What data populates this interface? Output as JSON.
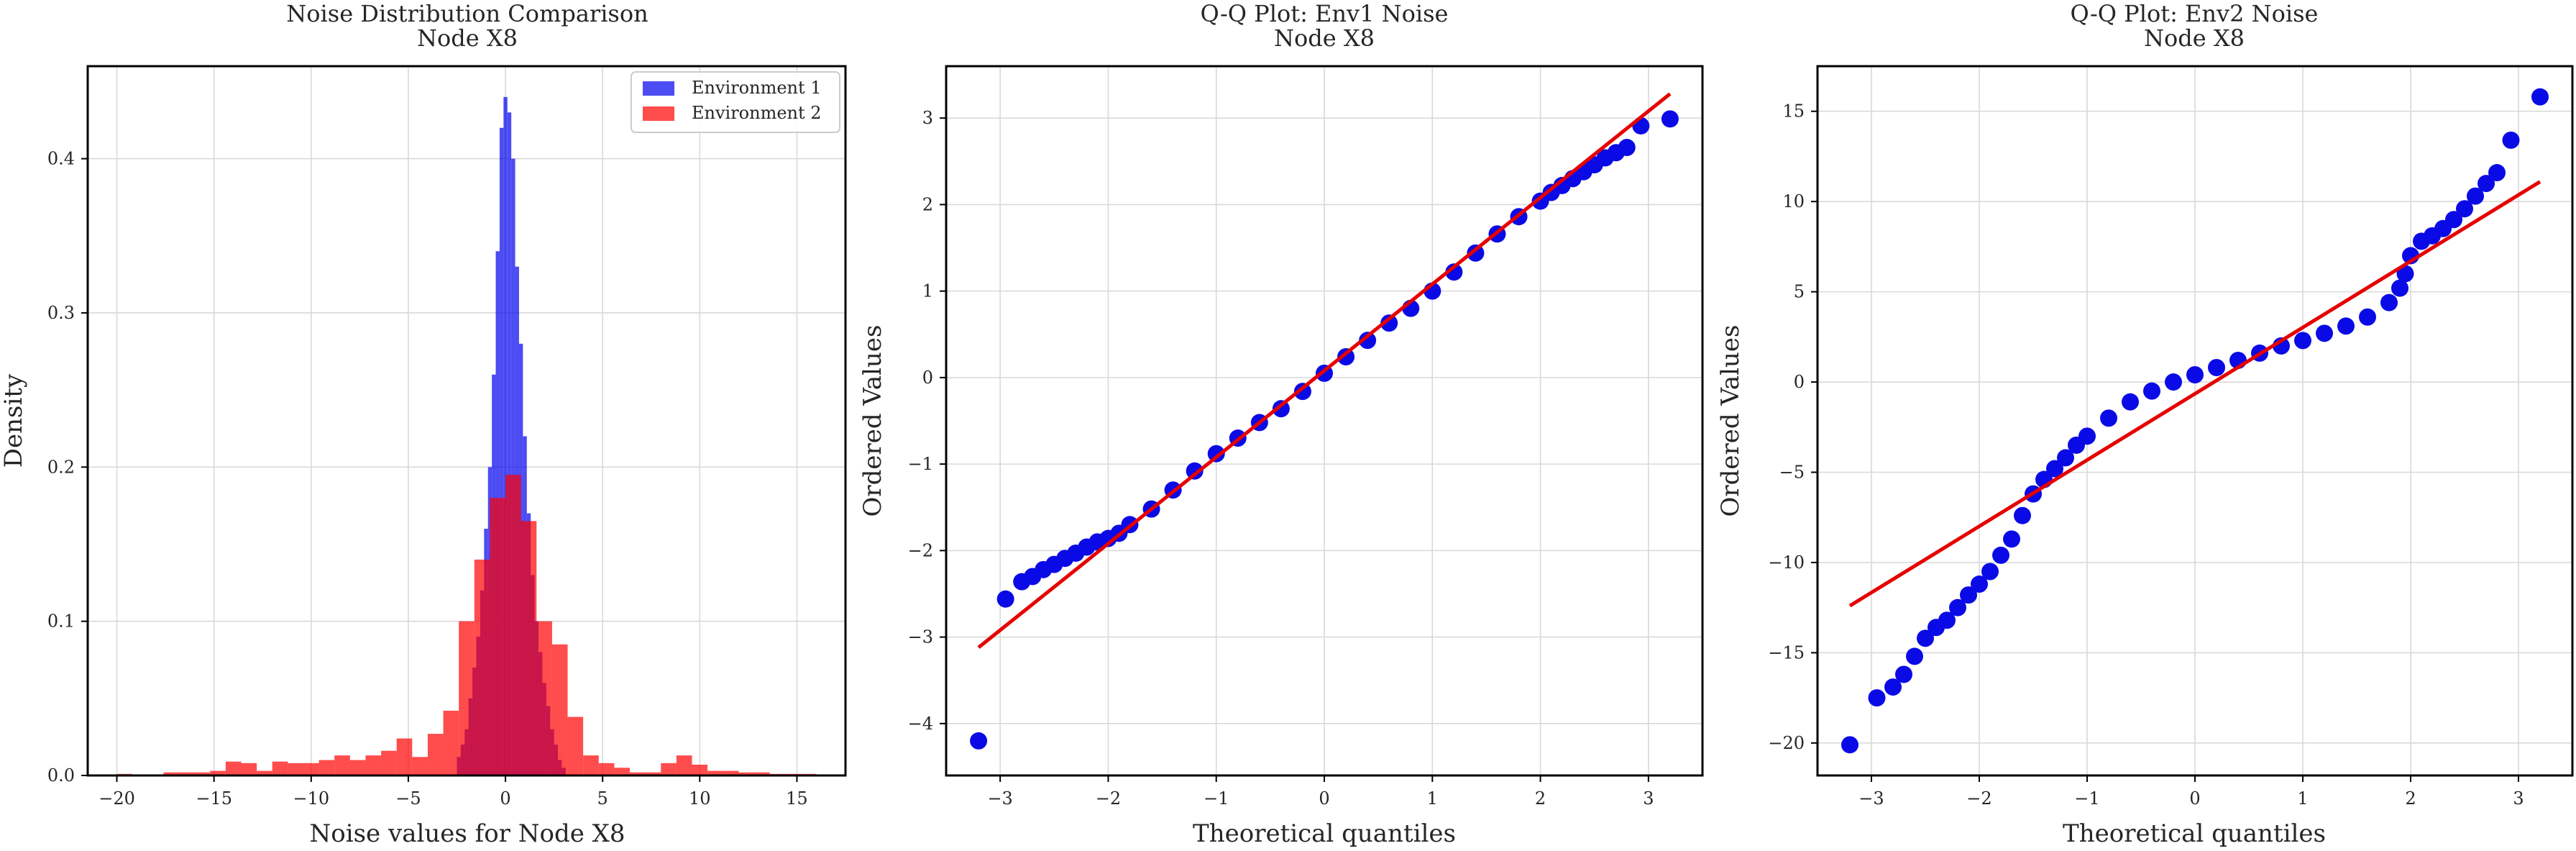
{
  "colors": {
    "env1": "#0000ee",
    "env2": "#ff0000",
    "qq_points": "#0a0ae6",
    "qq_line": "#e60000",
    "grid": "#d9d9d9"
  },
  "chart_data": [
    {
      "type": "histogram",
      "title": "Noise Distribution Comparison",
      "subtitle": "Node X8",
      "xlabel": "Noise values for Node X8",
      "ylabel": "Density",
      "xlim": [
        -21.5,
        17.5
      ],
      "ylim": [
        0,
        0.46
      ],
      "xticks": [
        -20,
        -15,
        -10,
        -5,
        0,
        5,
        10,
        15
      ],
      "yticks": [
        0.0,
        0.1,
        0.2,
        0.3,
        0.4
      ],
      "xtick_labels": [
        "−20",
        "−15",
        "−10",
        "−5",
        "0",
        "5",
        "10",
        "15"
      ],
      "ytick_labels": [
        "0.0",
        "0.1",
        "0.2",
        "0.3",
        "0.4"
      ],
      "grid": true,
      "legend": {
        "position": "top-right",
        "entries": [
          "Environment 1",
          "Environment 2"
        ]
      },
      "series": [
        {
          "name": "Environment 1",
          "bin_edges": [
            -2.5,
            -2.3,
            -2.1,
            -1.9,
            -1.7,
            -1.5,
            -1.3,
            -1.1,
            -0.9,
            -0.7,
            -0.5,
            -0.3,
            -0.1,
            0.1,
            0.3,
            0.5,
            0.7,
            0.9,
            1.1,
            1.3,
            1.5,
            1.7,
            1.9,
            2.1,
            2.3,
            2.5,
            2.7,
            2.9,
            3.1
          ],
          "density": [
            0.012,
            0.02,
            0.03,
            0.05,
            0.07,
            0.09,
            0.12,
            0.16,
            0.2,
            0.26,
            0.34,
            0.42,
            0.44,
            0.43,
            0.4,
            0.33,
            0.28,
            0.22,
            0.17,
            0.13,
            0.1,
            0.08,
            0.06,
            0.045,
            0.03,
            0.02,
            0.01,
            0.005
          ]
        },
        {
          "name": "Environment 2",
          "bin_edges": [
            -20,
            -19.2,
            -18.4,
            -17.6,
            -16.8,
            -16,
            -15.2,
            -14.4,
            -13.6,
            -12.8,
            -12,
            -11.2,
            -10.4,
            -9.6,
            -8.8,
            -8,
            -7.2,
            -6.4,
            -5.6,
            -4.8,
            -4,
            -3.2,
            -2.4,
            -1.6,
            -0.8,
            0,
            0.8,
            1.6,
            2.4,
            3.2,
            4,
            4.8,
            5.6,
            6.4,
            7.2,
            8,
            8.8,
            9.6,
            10.4,
            11.2,
            12,
            12.8,
            13.6,
            14.4,
            15.2,
            16
          ],
          "density": [
            0.001,
            0,
            0,
            0.002,
            0.002,
            0.002,
            0.003,
            0.009,
            0.008,
            0.003,
            0.009,
            0.008,
            0.008,
            0.01,
            0.013,
            0.01,
            0.013,
            0.016,
            0.024,
            0.012,
            0.027,
            0.042,
            0.1,
            0.14,
            0.18,
            0.195,
            0.165,
            0.1,
            0.085,
            0.038,
            0.013,
            0.008,
            0.005,
            0.002,
            0.002,
            0.008,
            0.013,
            0.007,
            0.003,
            0.003,
            0.002,
            0.002,
            0.001,
            0.001,
            0.001
          ]
        }
      ]
    },
    {
      "type": "scatter",
      "title": "Q-Q Plot: Env1 Noise",
      "subtitle": "Node X8",
      "xlabel": "Theoretical quantiles",
      "ylabel": "Ordered Values",
      "xlim": [
        -3.5,
        3.5
      ],
      "ylim": [
        -4.6,
        3.6
      ],
      "xticks": [
        -3,
        -2,
        -1,
        0,
        1,
        2,
        3
      ],
      "yticks": [
        -4,
        -3,
        -2,
        -1,
        0,
        1,
        2,
        3
      ],
      "xtick_labels": [
        "−3",
        "−2",
        "−1",
        "0",
        "1",
        "2",
        "3"
      ],
      "ytick_labels": [
        "−4",
        "−3",
        "−2",
        "−1",
        "0",
        "1",
        "2",
        "3"
      ],
      "grid": true,
      "fit_line": {
        "x": [
          -3.2,
          3.2
        ],
        "y": [
          -3.12,
          3.28
        ]
      },
      "points": {
        "x": [
          -3.2,
          -2.95,
          -2.8,
          -2.7,
          -2.6,
          -2.5,
          -2.4,
          -2.3,
          -2.2,
          -2.1,
          -2.0,
          -1.9,
          -1.8,
          -1.6,
          -1.4,
          -1.2,
          -1.0,
          -0.8,
          -0.6,
          -0.4,
          -0.2,
          0.0,
          0.2,
          0.4,
          0.6,
          0.8,
          1.0,
          1.2,
          1.4,
          1.6,
          1.8,
          2.0,
          2.1,
          2.2,
          2.3,
          2.4,
          2.5,
          2.6,
          2.7,
          2.8,
          2.93,
          3.2
        ],
        "y": [
          -4.2,
          -2.56,
          -2.36,
          -2.3,
          -2.22,
          -2.16,
          -2.09,
          -2.03,
          -1.96,
          -1.9,
          -1.86,
          -1.8,
          -1.7,
          -1.52,
          -1.3,
          -1.08,
          -0.88,
          -0.7,
          -0.52,
          -0.36,
          -0.16,
          0.05,
          0.24,
          0.43,
          0.63,
          0.8,
          1.0,
          1.22,
          1.44,
          1.66,
          1.86,
          2.04,
          2.14,
          2.22,
          2.3,
          2.38,
          2.46,
          2.54,
          2.6,
          2.66,
          2.91,
          2.99
        ]
      }
    },
    {
      "type": "scatter",
      "title": "Q-Q Plot: Env2 Noise",
      "subtitle": "Node X8",
      "xlabel": "Theoretical quantiles",
      "ylabel": "Ordered Values",
      "xlim": [
        -3.5,
        3.5
      ],
      "ylim": [
        -21.8,
        17.5
      ],
      "xticks": [
        -3,
        -2,
        -1,
        0,
        1,
        2,
        3
      ],
      "yticks": [
        -20,
        -15,
        -10,
        -5,
        0,
        5,
        10,
        15
      ],
      "xtick_labels": [
        "−3",
        "−2",
        "−1",
        "0",
        "1",
        "2",
        "3"
      ],
      "ytick_labels": [
        "−20",
        "−15",
        "−10",
        "−5",
        "0",
        "5",
        "10",
        "15"
      ],
      "grid": true,
      "fit_line": {
        "x": [
          -3.2,
          3.2
        ],
        "y": [
          -12.4,
          11.1
        ]
      },
      "points": {
        "x": [
          -3.2,
          -2.95,
          -2.8,
          -2.7,
          -2.6,
          -2.5,
          -2.4,
          -2.3,
          -2.2,
          -2.1,
          -2.0,
          -1.9,
          -1.8,
          -1.7,
          -1.6,
          -1.5,
          -1.4,
          -1.3,
          -1.2,
          -1.1,
          -1.0,
          -0.8,
          -0.6,
          -0.4,
          -0.2,
          0.0,
          0.2,
          0.4,
          0.6,
          0.8,
          1.0,
          1.2,
          1.4,
          1.6,
          1.8,
          1.9,
          1.95,
          2.0,
          2.1,
          2.2,
          2.3,
          2.4,
          2.5,
          2.6,
          2.7,
          2.8,
          2.93,
          3.2
        ],
        "y": [
          -20.1,
          -17.5,
          -16.9,
          -16.2,
          -15.2,
          -14.2,
          -13.6,
          -13.2,
          -12.5,
          -11.8,
          -11.2,
          -10.5,
          -9.6,
          -8.7,
          -7.4,
          -6.2,
          -5.4,
          -4.8,
          -4.2,
          -3.5,
          -3.0,
          -2.0,
          -1.1,
          -0.5,
          0.0,
          0.4,
          0.8,
          1.2,
          1.6,
          2.0,
          2.3,
          2.7,
          3.1,
          3.6,
          4.4,
          5.2,
          6.0,
          7.0,
          7.8,
          8.1,
          8.5,
          9.0,
          9.6,
          10.3,
          11.0,
          11.6,
          13.4,
          15.8
        ]
      }
    }
  ]
}
